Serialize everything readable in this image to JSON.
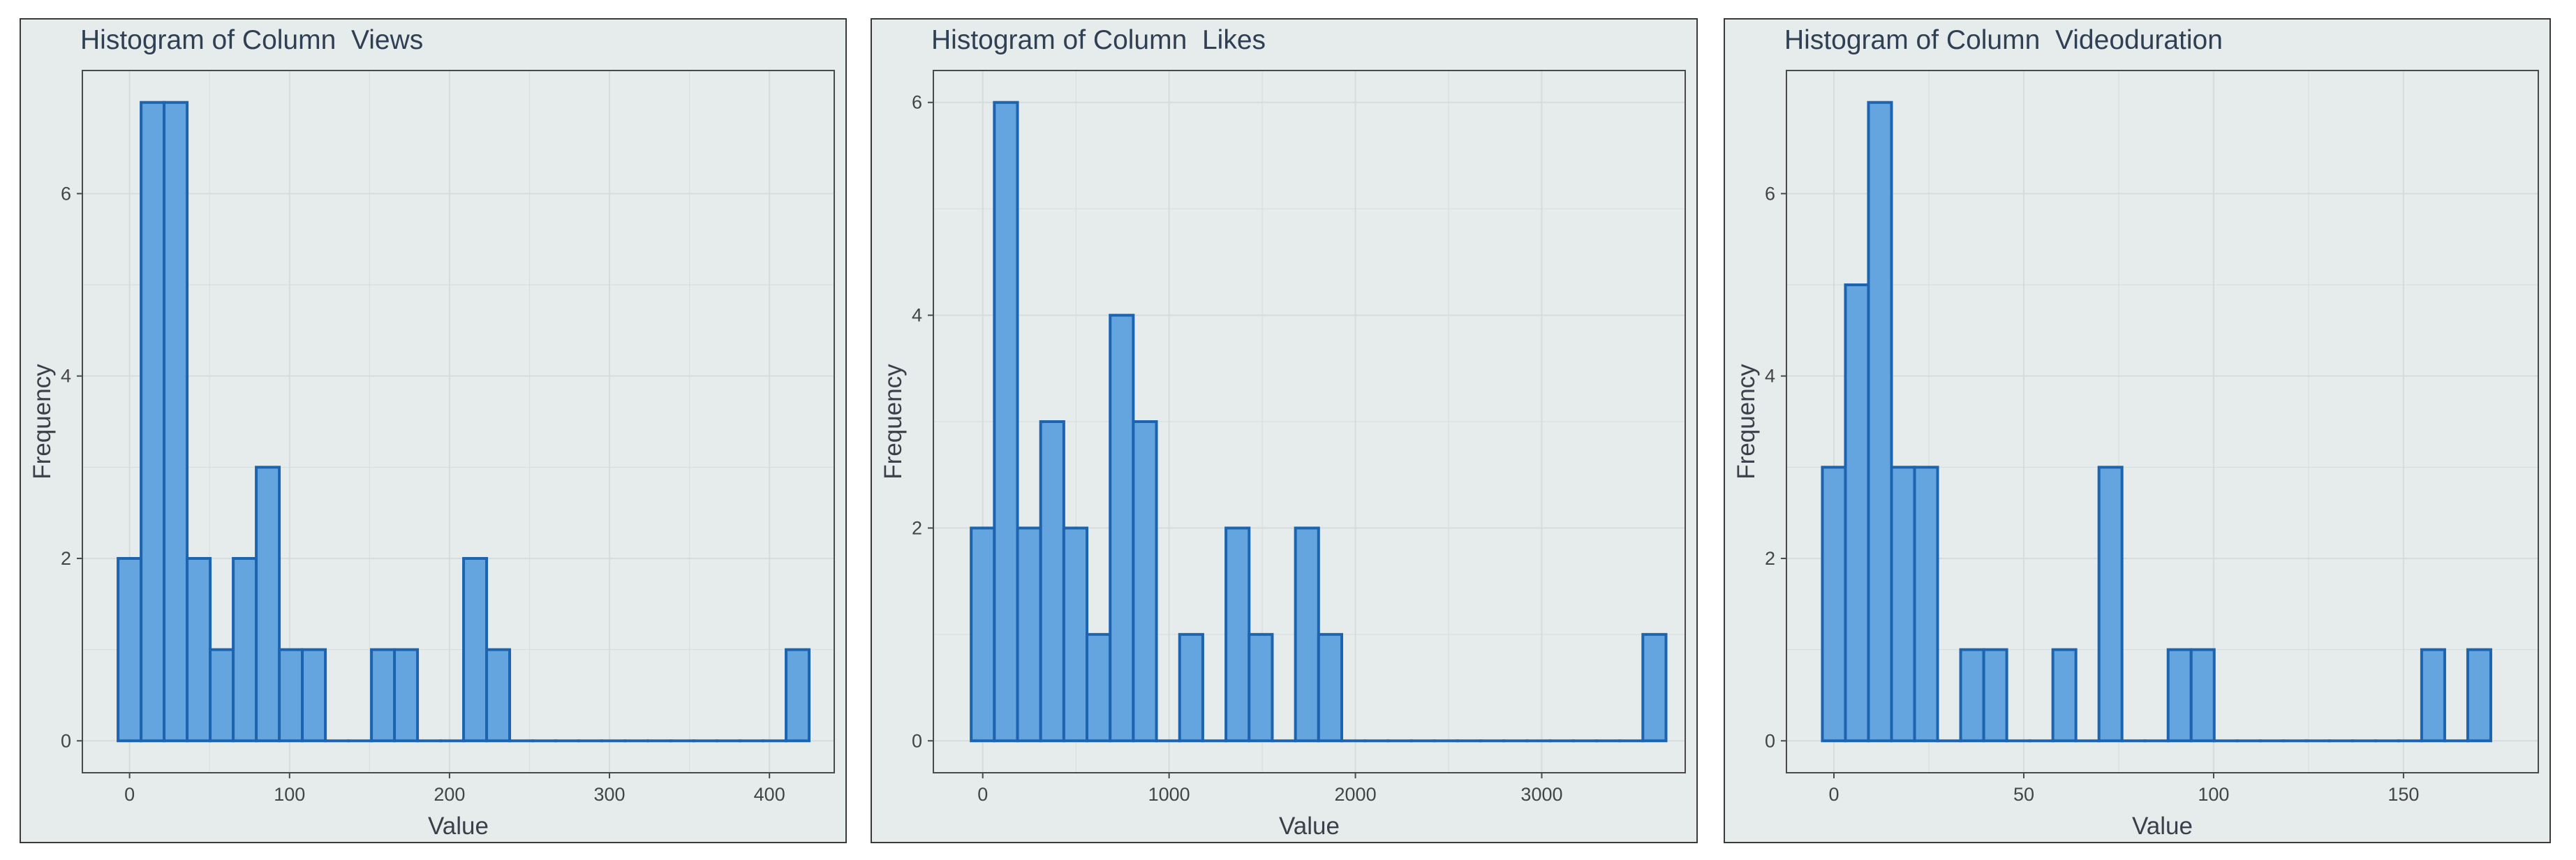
{
  "colors": {
    "bar_fill": "#64a5df",
    "bar_stroke": "#1d64b0",
    "panel_bg": "#e6ecec",
    "grid": "#d5dcdc"
  },
  "chart_data": [
    {
      "type": "bar",
      "title": "Histogram of Column  Views",
      "xlabel": "Value",
      "ylabel": "Frequency",
      "xlim": [
        -29.5,
        440.5
      ],
      "ylim": [
        -0.35,
        7.35
      ],
      "xticks": [
        0,
        100,
        200,
        300,
        400
      ],
      "yticks": [
        0,
        2,
        4,
        6
      ],
      "grid": true,
      "bin_width": 14.4,
      "bin_start": -7.2,
      "values": [
        2,
        7,
        7,
        2,
        1,
        2,
        3,
        1,
        1,
        0,
        0,
        1,
        1,
        0,
        0,
        2,
        1,
        0,
        0,
        0,
        0,
        0,
        0,
        0,
        0,
        0,
        0,
        0,
        0,
        1
      ]
    },
    {
      "type": "bar",
      "title": "Histogram of Column  Likes",
      "xlabel": "Value",
      "ylabel": "Frequency",
      "xlim": [
        -265,
        3770
      ],
      "ylim": [
        -0.3,
        6.3
      ],
      "xticks": [
        0,
        1000,
        2000,
        3000
      ],
      "yticks": [
        0,
        2,
        4,
        6
      ],
      "grid": true,
      "bin_width": 124.3,
      "bin_start": -62.1,
      "values": [
        2,
        6,
        2,
        3,
        2,
        1,
        4,
        3,
        0,
        1,
        0,
        2,
        1,
        0,
        2,
        1,
        0,
        0,
        0,
        0,
        0,
        0,
        0,
        0,
        0,
        0,
        0,
        0,
        0,
        1
      ]
    },
    {
      "type": "bar",
      "title": "Histogram of Column  Videoduration",
      "xlabel": "Value",
      "ylabel": "Frequency",
      "xlim": [
        -12.5,
        185.5
      ],
      "ylim": [
        -0.35,
        7.35
      ],
      "xticks": [
        0,
        50,
        100,
        150
      ],
      "yticks": [
        0,
        2,
        4,
        6
      ],
      "grid": true,
      "bin_width": 6.07,
      "bin_start": -3.04,
      "values": [
        3,
        5,
        7,
        3,
        3,
        0,
        1,
        1,
        0,
        0,
        1,
        0,
        3,
        0,
        0,
        1,
        1,
        0,
        0,
        0,
        0,
        0,
        0,
        0,
        0,
        0,
        1,
        0,
        1
      ]
    }
  ]
}
